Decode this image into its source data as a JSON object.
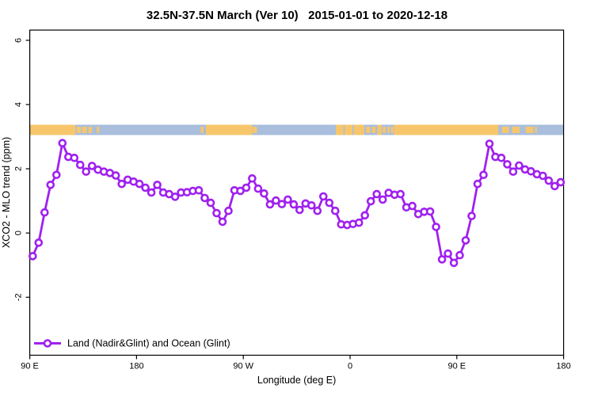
{
  "chart_data": {
    "type": "line",
    "title": "32.5N-37.5N March (Ver 10)   2015-01-01 to 2020-12-18",
    "xlabel": "Longitude (deg E)",
    "ylabel": "XCO2 - MLO trend (ppm)",
    "x_axis": {
      "range_deg_east": [
        90,
        540
      ],
      "ticks": [
        {
          "position": 90,
          "label": "90 E"
        },
        {
          "position": 180,
          "label": "180"
        },
        {
          "position": 270,
          "label": "90 W"
        },
        {
          "position": 360,
          "label": "0"
        },
        {
          "position": 450,
          "label": "90 E"
        },
        {
          "position": 540,
          "label": "180"
        }
      ]
    },
    "y_axis": {
      "range_ppm": [
        -3.8,
        6.3
      ],
      "ticks": [
        {
          "value": 6,
          "label": "6"
        },
        {
          "value": 4,
          "label": "4"
        },
        {
          "value": 2,
          "label": "2"
        },
        {
          "value": 0,
          "label": "0"
        },
        {
          "value": -2,
          "label": "-2"
        }
      ]
    },
    "series": [
      {
        "name": "Land (Nadir&Glint) and Ocean (Glint)",
        "color": "#A020F0",
        "marker": "open-circle",
        "x_start_deg": 92.5,
        "x_step_deg": 5,
        "values": [
          -0.72,
          -0.3,
          0.64,
          1.5,
          1.81,
          2.8,
          2.37,
          2.34,
          2.12,
          1.91,
          2.09,
          1.97,
          1.91,
          1.87,
          1.79,
          1.53,
          1.66,
          1.6,
          1.53,
          1.41,
          1.26,
          1.5,
          1.26,
          1.21,
          1.13,
          1.26,
          1.27,
          1.31,
          1.33,
          1.09,
          0.94,
          0.62,
          0.35,
          0.69,
          1.33,
          1.31,
          1.41,
          1.7,
          1.38,
          1.23,
          0.89,
          1.01,
          0.9,
          1.04,
          0.89,
          0.72,
          0.92,
          0.86,
          0.69,
          1.14,
          0.94,
          0.69,
          0.27,
          0.25,
          0.28,
          0.32,
          0.55,
          0.99,
          1.21,
          1.04,
          1.25,
          1.19,
          1.21,
          0.8,
          0.84,
          0.59,
          0.66,
          0.67,
          0.19,
          -0.82,
          -0.64,
          -0.93,
          -0.69,
          -0.23,
          0.53,
          1.53,
          1.81,
          2.78,
          2.37,
          2.34,
          2.14,
          1.91,
          2.1,
          1.98,
          1.92,
          1.83,
          1.78,
          1.63,
          1.46,
          1.58
        ]
      }
    ],
    "map_strip": {
      "description": "world land/ocean band at 32.5N-37.5N plotted near 3.2 ppm",
      "ocean_color": "#A8BEDC",
      "land_color": "#F7C66C",
      "y_value_range_ppm": [
        3.05,
        3.37
      ],
      "land_segments_solid": [
        [
          90,
          128.5
        ],
        [
          238.5,
          277.5
        ],
        [
          348,
          354.5
        ],
        [
          355.5,
          362
        ],
        [
          363,
          372
        ],
        [
          383,
          386.5
        ],
        [
          397,
          485
        ]
      ],
      "land_segments_islands": [
        [
          129.5,
          133
        ],
        [
          134,
          138
        ],
        [
          139.5,
          142.5
        ],
        [
          146.5,
          148.5
        ],
        [
          234,
          236.5
        ],
        [
          277.8,
          281.5
        ],
        [
          373.5,
          377
        ],
        [
          378.5,
          381.5
        ],
        [
          387.5,
          390
        ],
        [
          391.5,
          393.5
        ],
        [
          394.5,
          396.5
        ],
        [
          488,
          494
        ],
        [
          496.5,
          503
        ],
        [
          508,
          514.5
        ],
        [
          516,
          517.5
        ]
      ]
    },
    "legend": {
      "position": "bottom-left",
      "label": "Land (Nadir&Glint) and Ocean (Glint)",
      "line_color": "#A020F0"
    }
  }
}
